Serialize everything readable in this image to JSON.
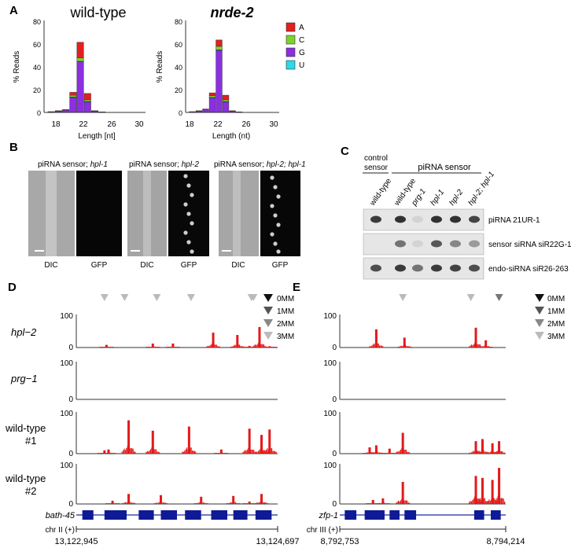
{
  "panels": {
    "A": "A",
    "B": "B",
    "C": "C",
    "D": "D",
    "E": "E"
  },
  "panel_a": {
    "ylabel": "% Reads",
    "yticks": [
      "0",
      "20",
      "40",
      "60",
      "80"
    ],
    "xticks": [
      "18",
      "22",
      "26",
      "30"
    ],
    "legend": [
      {
        "label": "A",
        "color": "#e41f1f"
      },
      {
        "label": "C",
        "color": "#7cd32a"
      },
      {
        "label": "G",
        "color": "#8b2fe0"
      },
      {
        "label": "U",
        "color": "#2bd9e8"
      }
    ]
  },
  "chart_data": [
    {
      "type": "bar",
      "stacked": true,
      "title": "wild-type",
      "xlabel": "Length [nt]",
      "ylabel": "% Reads",
      "ylim": [
        0,
        80
      ],
      "xlim": [
        17,
        31
      ],
      "categories": [
        18,
        19,
        20,
        21,
        22,
        23,
        24,
        25,
        26,
        27,
        28,
        29,
        30
      ],
      "series": [
        {
          "name": "G",
          "values": [
            0.4,
            1,
            2,
            13,
            44,
            9,
            1,
            0.3,
            0,
            0,
            0,
            0,
            0
          ]
        },
        {
          "name": "U",
          "values": [
            0,
            0,
            0,
            0.5,
            0.5,
            0.5,
            0,
            0,
            0,
            0,
            0,
            0,
            0
          ]
        },
        {
          "name": "C",
          "values": [
            0,
            0,
            0,
            1.5,
            3,
            1.5,
            0,
            0,
            0,
            0,
            0,
            0,
            0
          ]
        },
        {
          "name": "A",
          "values": [
            0.3,
            0.5,
            0.5,
            2.5,
            13.5,
            5.5,
            0.5,
            0.2,
            0,
            0,
            0,
            0,
            0
          ]
        }
      ]
    },
    {
      "type": "bar",
      "stacked": true,
      "title": "nrde-2",
      "xlabel": "Length (nt)",
      "ylabel": "% Reads",
      "ylim": [
        0,
        80
      ],
      "xlim": [
        17,
        31
      ],
      "categories": [
        18,
        19,
        20,
        21,
        22,
        23,
        24,
        25,
        26,
        27,
        28,
        29,
        30
      ],
      "series": [
        {
          "name": "G",
          "values": [
            0.4,
            1,
            2.5,
            12.5,
            54,
            9,
            1,
            0.3,
            0,
            0,
            0,
            0,
            0
          ]
        },
        {
          "name": "U",
          "values": [
            0,
            0,
            0,
            0.5,
            0.5,
            0.5,
            0,
            0,
            0,
            0,
            0,
            0,
            0
          ]
        },
        {
          "name": "C",
          "values": [
            0,
            0,
            0,
            1.5,
            3,
            1.5,
            0,
            0,
            0,
            0,
            0,
            0,
            0
          ]
        },
        {
          "name": "A",
          "values": [
            0.3,
            0.5,
            0.5,
            2.5,
            5.5,
            4,
            0.5,
            0.2,
            0,
            0,
            0,
            0,
            0
          ]
        }
      ]
    }
  ],
  "panel_b": {
    "groups": [
      {
        "title_prefix": "piRNA sensor; ",
        "title_gene": "hpl-1",
        "dic": "DIC",
        "gfp": "GFP"
      },
      {
        "title_prefix": "piRNA sensor; ",
        "title_gene": "hpl-2",
        "dic": "DIC",
        "gfp": "GFP"
      },
      {
        "title_prefix": "piRNA sensor; ",
        "title_gene": "hpl-2; hpl-1",
        "dic": "DIC",
        "gfp": "GFP"
      }
    ]
  },
  "panel_c": {
    "control_line1": "control",
    "control_line2": "sensor",
    "pirna_sensor": "piRNA sensor",
    "lanes": [
      "wild-type",
      "wild-type",
      "prg-1",
      "hpl-1",
      "hpl-2",
      "hpl-2; hpl-1"
    ],
    "blots": [
      {
        "label": "piRNA 21UR-1",
        "intensity": [
          0.85,
          0.9,
          0.05,
          0.9,
          0.9,
          0.8
        ]
      },
      {
        "label": "sensor siRNA siR22G-1",
        "intensity": [
          0.0,
          0.55,
          0.05,
          0.7,
          0.45,
          0.35
        ]
      },
      {
        "label": "endo-siRNA siR26-263",
        "intensity": [
          0.75,
          0.85,
          0.55,
          0.85,
          0.8,
          0.75
        ]
      }
    ]
  },
  "mm_legend": [
    {
      "label": "0MM",
      "color": "#111111"
    },
    {
      "label": "1MM",
      "color": "#555555"
    },
    {
      "label": "2MM",
      "color": "#888888"
    },
    {
      "label": "3MM",
      "color": "#bbbbbb"
    }
  ],
  "tracks": {
    "labels": [
      "hpl−2",
      "prg−1",
      "wild-type",
      "wild-type"
    ],
    "labels2": [
      "",
      "",
      "#1",
      "#2"
    ],
    "ymax": "100",
    "ymin": "0"
  },
  "panel_d": {
    "gene": "bath-45",
    "chrom": "chr II (+)",
    "start": "13,122,945",
    "end": "13,124,697",
    "mm_markers": [
      0.14,
      0.24,
      0.4,
      0.57,
      0.87,
      0.88
    ],
    "exons": [
      [
        0.03,
        0.085
      ],
      [
        0.14,
        0.25
      ],
      [
        0.31,
        0.385
      ],
      [
        0.42,
        0.5
      ],
      [
        0.54,
        0.62
      ],
      [
        0.67,
        0.75
      ],
      [
        0.78,
        0.85
      ],
      [
        0.89,
        0.97
      ]
    ],
    "signal": [
      {
        "region": "hpl-2",
        "peaks": [
          [
            0.15,
            8
          ],
          [
            0.38,
            12
          ],
          [
            0.48,
            12
          ],
          [
            0.68,
            45
          ],
          [
            0.8,
            38
          ],
          [
            0.86,
            5
          ],
          [
            0.91,
            62
          ],
          [
            0.96,
            4
          ]
        ]
      },
      {
        "region": "prg-1",
        "peaks": []
      },
      {
        "region": "wild-type #1",
        "peaks": [
          [
            0.14,
            8
          ],
          [
            0.16,
            10
          ],
          [
            0.26,
            80
          ],
          [
            0.38,
            55
          ],
          [
            0.56,
            65
          ],
          [
            0.72,
            10
          ],
          [
            0.86,
            60
          ],
          [
            0.92,
            45
          ],
          [
            0.96,
            58
          ]
        ]
      },
      {
        "region": "wild-type #2",
        "peaks": [
          [
            0.18,
            8
          ],
          [
            0.26,
            25
          ],
          [
            0.42,
            22
          ],
          [
            0.62,
            18
          ],
          [
            0.78,
            20
          ],
          [
            0.86,
            6
          ],
          [
            0.92,
            25
          ]
        ]
      }
    ]
  },
  "panel_e": {
    "gene": "zfp-1",
    "chrom": "chr III (+)",
    "start": "8,792,753",
    "end": "8,794,214",
    "mm_markers": [
      0.38,
      0.79,
      0.96
    ],
    "exons": [
      [
        0.03,
        0.1
      ],
      [
        0.15,
        0.27
      ],
      [
        0.3,
        0.36
      ],
      [
        0.39,
        0.46
      ],
      [
        0.81,
        0.87
      ],
      [
        0.91,
        0.97
      ]
    ],
    "signal": [
      {
        "region": "hpl-2",
        "peaks": [
          [
            0.22,
            55
          ],
          [
            0.39,
            30
          ],
          [
            0.82,
            60
          ],
          [
            0.88,
            22
          ]
        ]
      },
      {
        "region": "prg-1",
        "peaks": []
      },
      {
        "region": "wild-type #1",
        "peaks": [
          [
            0.18,
            15
          ],
          [
            0.22,
            20
          ],
          [
            0.3,
            12
          ],
          [
            0.38,
            50
          ],
          [
            0.82,
            30
          ],
          [
            0.86,
            35
          ],
          [
            0.92,
            25
          ],
          [
            0.96,
            30
          ]
        ]
      },
      {
        "region": "wild-type #2",
        "peaks": [
          [
            0.2,
            10
          ],
          [
            0.26,
            14
          ],
          [
            0.38,
            55
          ],
          [
            0.82,
            70
          ],
          [
            0.86,
            65
          ],
          [
            0.92,
            60
          ],
          [
            0.96,
            90
          ]
        ]
      }
    ]
  }
}
